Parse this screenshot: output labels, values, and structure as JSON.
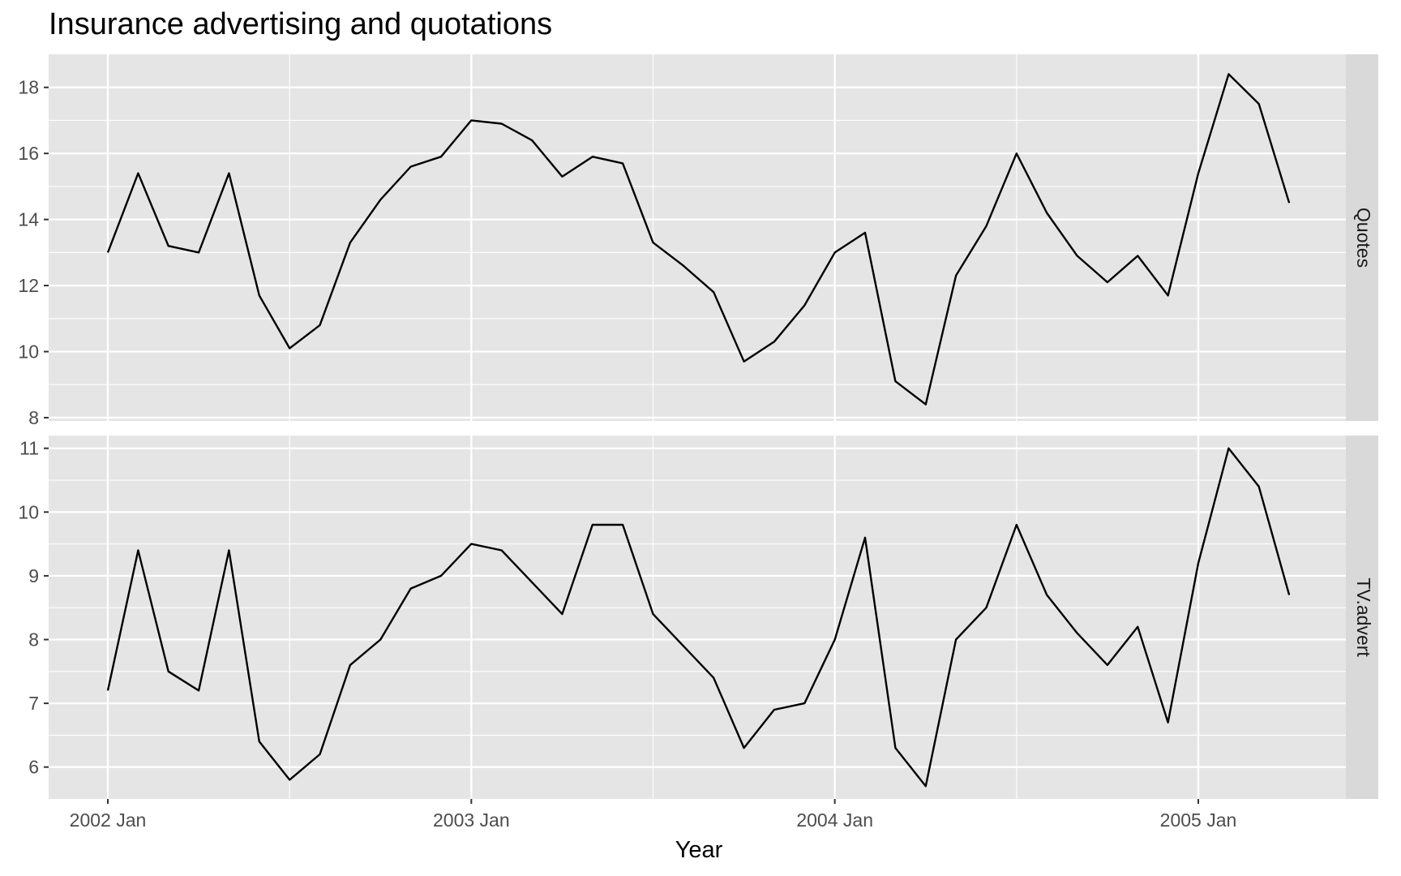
{
  "chart_data": {
    "type": "line",
    "title": "Insurance advertising and quotations",
    "xlabel": "Year",
    "x": [
      "2002 Jan",
      "2002 Feb",
      "2002 Mar",
      "2002 Apr",
      "2002 May",
      "2002 Jun",
      "2002 Jul",
      "2002 Aug",
      "2002 Sep",
      "2002 Oct",
      "2002 Nov",
      "2002 Dec",
      "2003 Jan",
      "2003 Feb",
      "2003 Mar",
      "2003 Apr",
      "2003 May",
      "2003 Jun",
      "2003 Jul",
      "2003 Aug",
      "2003 Sep",
      "2003 Oct",
      "2003 Nov",
      "2003 Dec",
      "2004 Jan",
      "2004 Feb",
      "2004 Mar",
      "2004 Apr",
      "2004 May",
      "2004 Jun",
      "2004 Jul",
      "2004 Aug",
      "2004 Sep",
      "2004 Oct",
      "2004 Nov",
      "2004 Dec",
      "2005 Jan",
      "2005 Feb",
      "2005 Mar",
      "2005 Apr"
    ],
    "x_ticks": [
      "2002 Jan",
      "2003 Jan",
      "2004 Jan",
      "2005 Jan"
    ],
    "grid": true,
    "facets": [
      {
        "strip_label": "Quotes",
        "ylim": [
          7.9,
          19.0
        ],
        "y_ticks": [
          8,
          10,
          12,
          14,
          16,
          18
        ],
        "values": [
          13.0,
          15.4,
          13.2,
          13.0,
          15.4,
          11.7,
          10.1,
          10.8,
          13.3,
          14.6,
          15.6,
          15.9,
          17.0,
          16.9,
          16.4,
          15.3,
          15.9,
          15.7,
          13.3,
          12.6,
          11.8,
          9.7,
          10.3,
          11.4,
          13.0,
          13.6,
          9.1,
          8.4,
          12.3,
          13.8,
          16.0,
          14.2,
          12.9,
          12.1,
          12.9,
          11.7,
          15.4,
          18.4,
          17.5,
          14.5
        ]
      },
      {
        "strip_label": "TV.advert",
        "ylim": [
          5.5,
          11.2
        ],
        "y_ticks": [
          6,
          7,
          8,
          9,
          10,
          11
        ],
        "values": [
          7.2,
          9.4,
          7.5,
          7.2,
          9.4,
          6.4,
          5.8,
          6.2,
          7.6,
          8.0,
          8.8,
          9.0,
          9.5,
          9.4,
          8.9,
          8.4,
          9.8,
          9.8,
          8.4,
          7.9,
          7.4,
          6.3,
          6.9,
          7.0,
          8.0,
          9.6,
          6.3,
          5.7,
          8.0,
          8.5,
          9.8,
          8.7,
          8.1,
          7.6,
          8.2,
          6.7,
          9.2,
          11.0,
          10.4,
          8.7
        ]
      }
    ]
  },
  "colors": {
    "panel_bg": "#e5e5e5",
    "grid_major": "#ffffff",
    "strip_bg": "#d9d9d9",
    "line": "#000000",
    "tick_label": "#4d4d4d"
  }
}
